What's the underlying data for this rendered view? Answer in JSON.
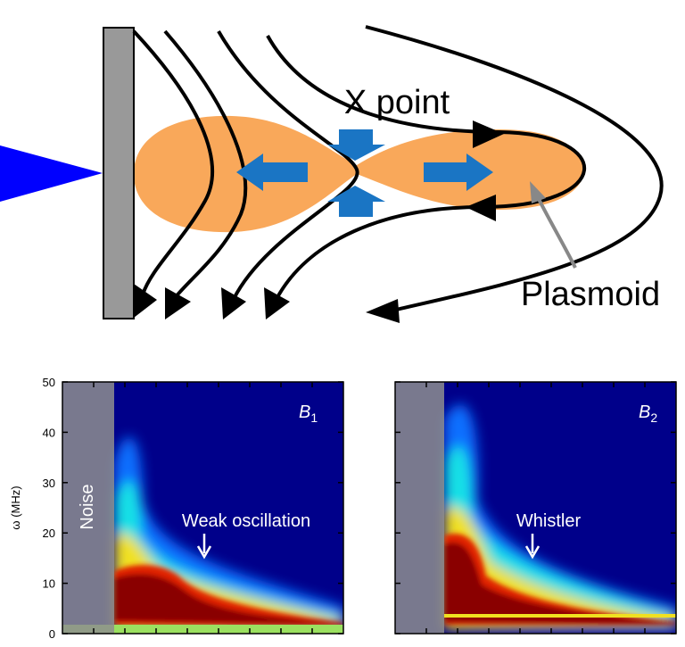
{
  "diagram": {
    "labels": {
      "x_point": "X point",
      "plasmoid": "Plasmoid"
    }
  },
  "panels": [
    {
      "label": {
        "symbol": "B",
        "subscript": "1"
      },
      "annotation": "Weak oscillation",
      "noise": "Noise",
      "ylabel": "ω (MHz)",
      "ylim": [
        0,
        50
      ],
      "yticks": [
        0,
        10,
        20,
        30,
        40,
        50
      ]
    },
    {
      "label": {
        "symbol": "B",
        "subscript": "2"
      },
      "annotation": "Whistler",
      "ylim": [
        0,
        50
      ]
    }
  ]
}
